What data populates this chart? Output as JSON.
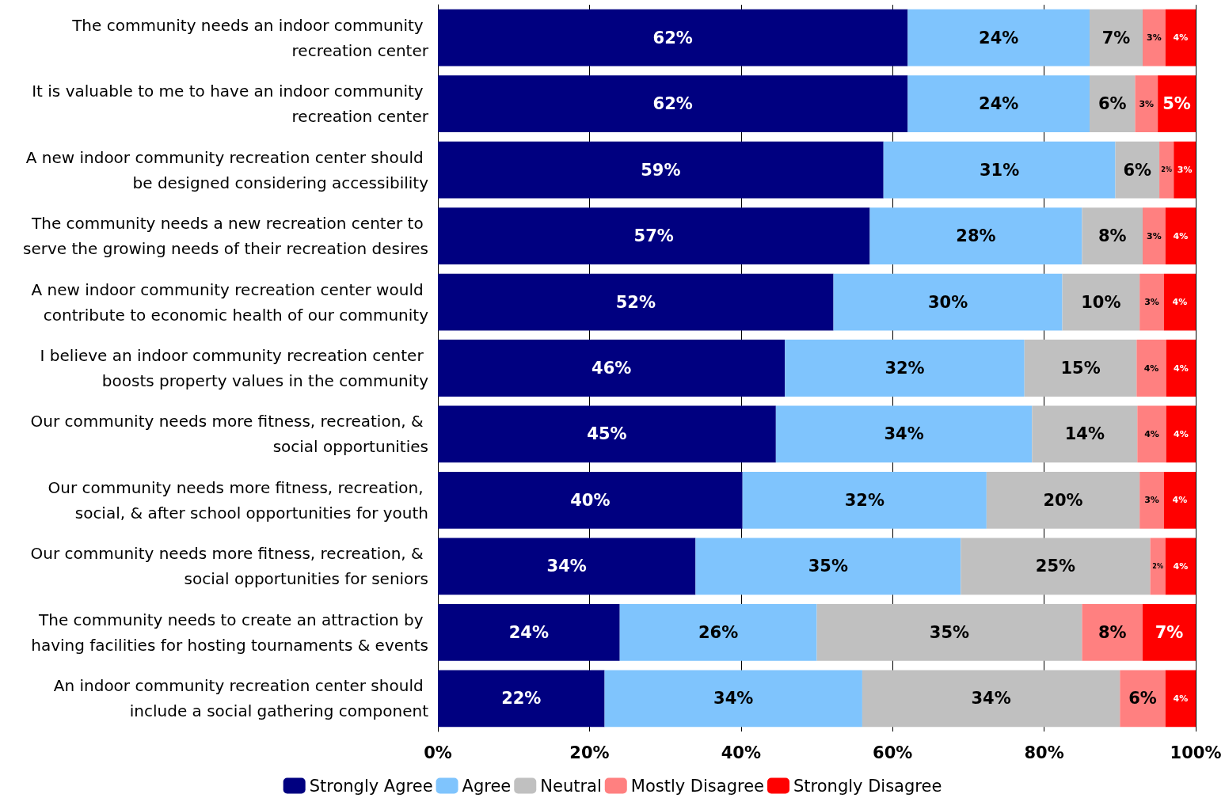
{
  "chart_data": {
    "type": "bar",
    "orientation": "horizontal",
    "stacked": true,
    "categories": [
      "The community needs an indoor community recreation center",
      "It is valuable to me to have an indoor community recreation center",
      "A new indoor community recreation center should be designed considering accessibility",
      "The community needs a new recreation center to serve the growing needs of their recreation desires",
      "A new indoor community recreation center would contribute to economic health of our community",
      "I believe an indoor community recreation center boosts property values in the community",
      "Our community needs more fitness, recreation, & social opportunities",
      "Our community needs more fitness, recreation, social, & after school opportunities for youth",
      "Our community needs more fitness, recreation, & social opportunities for seniors",
      "The community needs to create an attraction by having facilities for hosting tournaments & events",
      "An indoor community recreation center should include a social gathering component"
    ],
    "series": [
      {
        "name": "Strongly Agree",
        "color": "#000080",
        "values": [
          62,
          62,
          58.8,
          57,
          52.2,
          45.8,
          44.6,
          40.2,
          34,
          24,
          22
        ],
        "value_labels": [
          "62%",
          "62%",
          "59%",
          "57%",
          "52%",
          "46%",
          "45%",
          "40%",
          "34%",
          "24%",
          "22%"
        ]
      },
      {
        "name": "Agree",
        "color": "#7fc4fd",
        "values": [
          24,
          24,
          30.6,
          28,
          30.2,
          31.6,
          33.8,
          32.2,
          35,
          26,
          34
        ],
        "value_labels": [
          "24%",
          "24%",
          "31%",
          "28%",
          "30%",
          "32%",
          "34%",
          "32%",
          "35%",
          "26%",
          "34%"
        ]
      },
      {
        "name": "Neutral",
        "color": "#c0c0c0",
        "values": [
          7,
          6,
          5.8,
          8,
          10.2,
          14.8,
          13.9,
          20.2,
          25,
          35,
          34
        ],
        "value_labels": [
          "7%",
          "6%",
          "6%",
          "8%",
          "10%",
          "15%",
          "14%",
          "20%",
          "25%",
          "35%",
          "34%"
        ]
      },
      {
        "name": "Mostly Disagree",
        "color": "#ff8080",
        "values": [
          3,
          3,
          1.9,
          3,
          3.2,
          3.9,
          3.8,
          3.2,
          2,
          8,
          6
        ],
        "value_labels": [
          "3%",
          "3%",
          "2%",
          "3%",
          "3%",
          "4%",
          "4%",
          "3%",
          "2%",
          "8%",
          "6%"
        ]
      },
      {
        "name": "Strongly Disagree",
        "color": "#ff0000",
        "values": [
          4,
          5,
          2.9,
          4,
          4.2,
          3.9,
          3.9,
          4.2,
          4,
          7,
          4
        ],
        "value_labels": [
          "4%",
          "5%",
          "3%",
          "4%",
          "4%",
          "4%",
          "4%",
          "4%",
          "4%",
          "7%",
          "4%"
        ]
      }
    ],
    "xlim": [
      0,
      100
    ],
    "xticks": [
      {
        "value": 0,
        "label": "0%"
      },
      {
        "value": 20,
        "label": "20%"
      },
      {
        "value": 40,
        "label": "40%"
      },
      {
        "value": 60,
        "label": "60%"
      },
      {
        "value": 80,
        "label": "80%"
      },
      {
        "value": 100,
        "label": "100%"
      }
    ],
    "grid": "x",
    "legend": "bottom"
  }
}
